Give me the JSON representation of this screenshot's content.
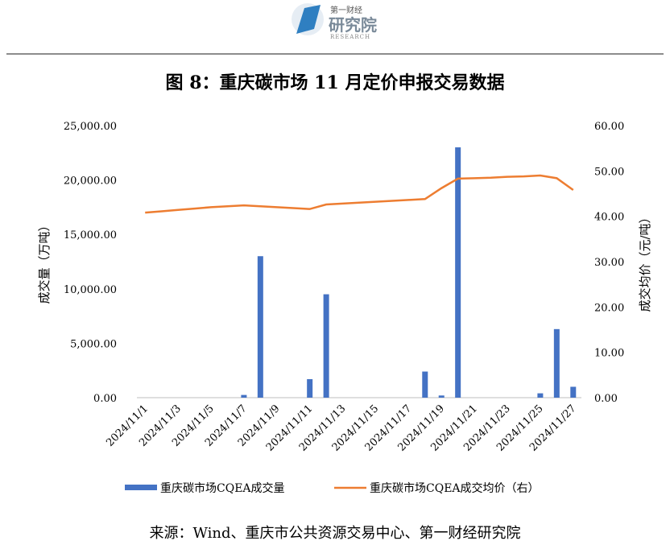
{
  "header": {
    "logo_top": "第一财经",
    "logo_main": "研究院",
    "logo_sub": "RESEARCH"
  },
  "chart_data": {
    "type": "bar",
    "title": "图 8：重庆碳市场 11 月定价申报交易数据",
    "categories": [
      "2024/11/1",
      null,
      "2024/11/3",
      null,
      "2024/11/5",
      null,
      "2024/11/7",
      null,
      "2024/11/9",
      null,
      "2024/11/11",
      null,
      "2024/11/13",
      null,
      "2024/11/15",
      null,
      "2024/11/17",
      null,
      "2024/11/19",
      null,
      "2024/11/21",
      null,
      "2024/11/23",
      null,
      "2024/11/25",
      null,
      "2024/11/27"
    ],
    "series": [
      {
        "name": "重庆碳市场CQEA成交量",
        "type": "bar",
        "color": "#4472c4",
        "values": [
          null,
          null,
          null,
          null,
          null,
          null,
          250,
          13000,
          null,
          null,
          1700,
          9500,
          null,
          null,
          null,
          null,
          null,
          2400,
          200,
          23000,
          null,
          null,
          null,
          null,
          400,
          6300,
          1000
        ]
      },
      {
        "name": "重庆碳市场CQEA成交均价（右）",
        "type": "line",
        "color": "#ed7d31",
        "axis": "y2",
        "values": [
          40.8,
          41.1,
          41.4,
          41.7,
          42.0,
          42.2,
          42.4,
          42.2,
          42.0,
          41.8,
          41.6,
          42.6,
          42.8,
          43.0,
          43.2,
          43.4,
          43.6,
          43.8,
          46.2,
          48.3,
          48.4,
          48.5,
          48.7,
          48.8,
          49.0,
          48.4,
          45.8
        ]
      }
    ],
    "ylabel": "成交量（万吨）",
    "y2label": "成交均价（元/吨）",
    "ylim": [
      0,
      25000
    ],
    "yticks": [
      {
        "value": 0,
        "label": "0.00"
      },
      {
        "value": 5000,
        "label": "5,000.00"
      },
      {
        "value": 10000,
        "label": "10,000.00"
      },
      {
        "value": 15000,
        "label": "15,000.00"
      },
      {
        "value": 20000,
        "label": "20,000.00"
      },
      {
        "value": 25000,
        "label": "25,000.00"
      }
    ],
    "y2lim": [
      0,
      60
    ],
    "y2ticks": [
      {
        "value": 0,
        "label": "0.00"
      },
      {
        "value": 10,
        "label": "10.00"
      },
      {
        "value": 20,
        "label": "20.00"
      },
      {
        "value": 30,
        "label": "30.00"
      },
      {
        "value": 40,
        "label": "40.00"
      },
      {
        "value": 50,
        "label": "50.00"
      },
      {
        "value": 60,
        "label": "60.00"
      }
    ],
    "grid": false,
    "legend": "bottom",
    "source": "来源：Wind、重庆市公共资源交易中心、第一财经研究院"
  }
}
